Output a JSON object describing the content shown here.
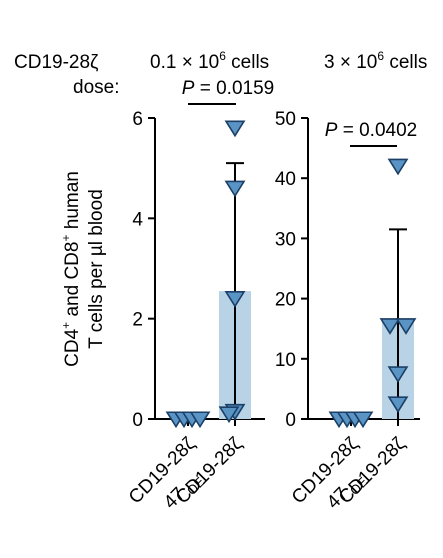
{
  "header": {
    "construct": "CD19-28ζ",
    "dose_label": "dose:",
    "panels": [
      {
        "dose_base": "0.1 × 10",
        "dose_exp": "6",
        "dose_unit": " cells"
      },
      {
        "dose_base": "3 × 10",
        "dose_exp": "6",
        "dose_unit": " cells"
      }
    ]
  },
  "ylabel": {
    "line1": {
      "a": "CD4",
      "a_sup": "+",
      "b": " and CD8",
      "b_sup": "+",
      "c": " human"
    },
    "line2": "T cells per µl blood"
  },
  "colors": {
    "bar": "#b8d3e6",
    "marker_fill": "#5a94c4",
    "marker_stroke": "#1b3f66"
  },
  "chart_data": [
    {
      "type": "bar",
      "categories": [
        "CD19-28ζ",
        "CD19-28ζ 47 OE"
      ],
      "category_labels": [
        {
          "main": "CD19-28ζ"
        },
        {
          "prefix": "47",
          "sub": "OE",
          "main": "CD19-28ζ"
        }
      ],
      "ylim": [
        0,
        6
      ],
      "yticks": [
        0,
        2,
        4,
        6
      ],
      "tick_labels": [
        "0",
        "2",
        "4",
        "6"
      ],
      "bar_values": [
        0,
        2.55
      ],
      "error_upper": [
        null,
        5.1
      ],
      "points": [
        [
          0,
          0,
          0,
          0
        ],
        [
          5.8,
          4.6,
          2.4,
          0.15,
          0.1
        ]
      ],
      "p_value_label": "P",
      "p_value_text": " = 0.0159"
    },
    {
      "type": "bar",
      "categories": [
        "CD19-28ζ",
        "CD19-28ζ 47 OE"
      ],
      "category_labels": [
        {
          "main": "CD19-28ζ"
        },
        {
          "prefix": "47",
          "sub": "OE",
          "main": "CD19-28ζ"
        }
      ],
      "ylim": [
        0,
        50
      ],
      "yticks": [
        0,
        10,
        20,
        30,
        40,
        50
      ],
      "tick_labels": [
        "0",
        "10",
        "20",
        "30",
        "40",
        "50"
      ],
      "bar_values": [
        0,
        16
      ],
      "error_upper": [
        null,
        31.5
      ],
      "points": [
        [
          0,
          0,
          0,
          0
        ],
        [
          42,
          15.5,
          15.5,
          7.5,
          2.5
        ]
      ],
      "p_value_label": "P",
      "p_value_text": " = 0.0402"
    }
  ]
}
